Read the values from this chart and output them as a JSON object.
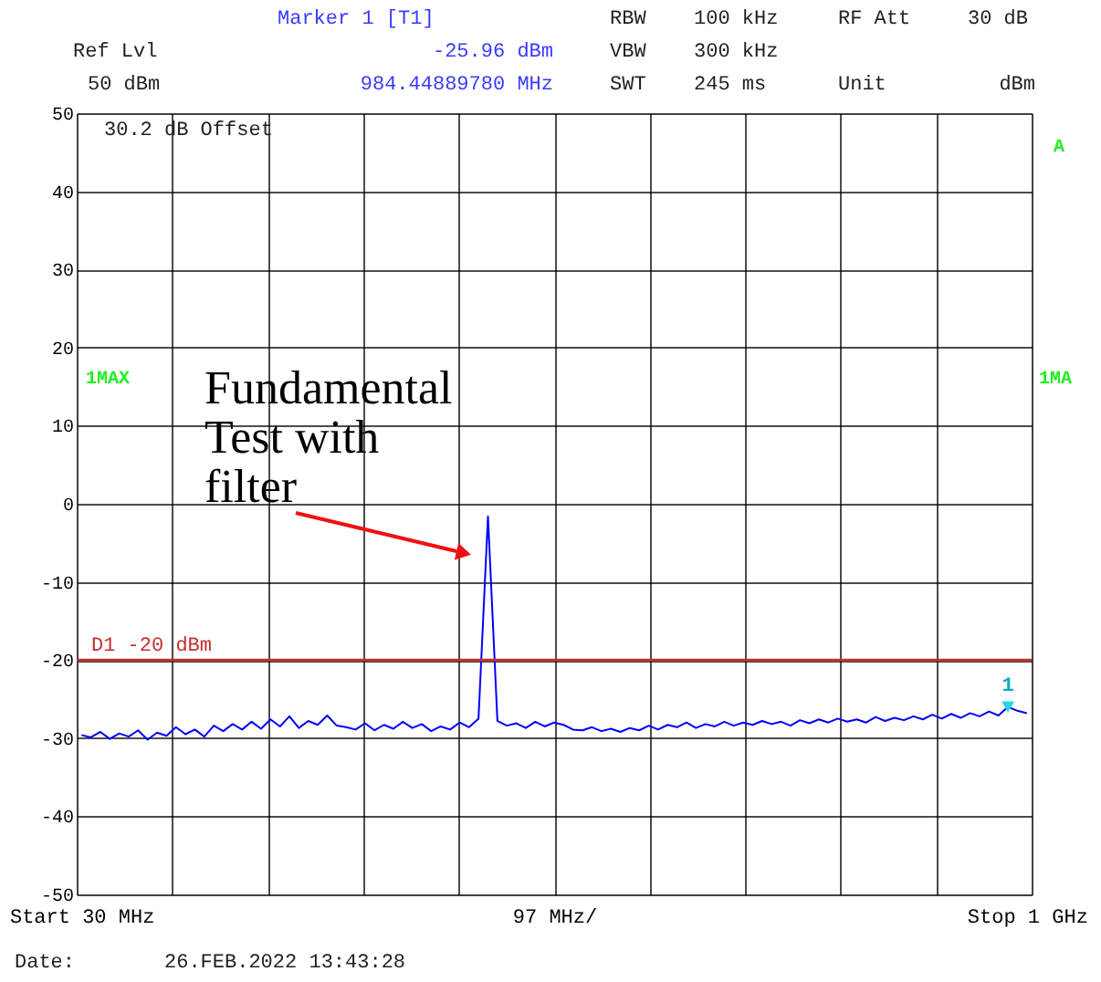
{
  "chart_data": {
    "type": "line",
    "categories": [
      "Start 30 MHz",
      null,
      null,
      null,
      null,
      null,
      null,
      null,
      null,
      null,
      null,
      null,
      null,
      null,
      null,
      null,
      null,
      null,
      null,
      null,
      null,
      null,
      null,
      null,
      null,
      null,
      null,
      null,
      null,
      null,
      null,
      null,
      null,
      null,
      null,
      null,
      null,
      null,
      null,
      null,
      null,
      null,
      null,
      null,
      null,
      null,
      null,
      null,
      null,
      null,
      "97 MHz/",
      null,
      null,
      null,
      null,
      null,
      null,
      null,
      null,
      null,
      null,
      null,
      null,
      null,
      null,
      null,
      null,
      null,
      null,
      null,
      null,
      null,
      null,
      null,
      null,
      null,
      null,
      null,
      null,
      null,
      null,
      null,
      null,
      null,
      null,
      null,
      null,
      null,
      null,
      null,
      null,
      null,
      null,
      null,
      null,
      null,
      null,
      null,
      null,
      null,
      "Stop 1 GHz"
    ],
    "series": [
      {
        "color": "#0000ff",
        "values": [
          -29.6,
          -29.9,
          -29.2,
          -30.1,
          -29.4,
          -29.8,
          -29.0,
          -30.2,
          -29.3,
          -29.7,
          -28.6,
          -29.5,
          -28.9,
          -29.8,
          -28.4,
          -29.1,
          -28.2,
          -28.9,
          -27.9,
          -28.8,
          -27.6,
          -28.5,
          -27.2,
          -28.7,
          -27.8,
          -28.3,
          -27.1,
          -28.4,
          -28.6,
          -28.9,
          -28.1,
          -29.0,
          -28.3,
          -28.8,
          -27.9,
          -28.7,
          -28.2,
          -29.1,
          -28.5,
          -28.9,
          -28.0,
          -28.6,
          -27.5,
          -1.6,
          -27.8,
          -28.4,
          -28.1,
          -28.7,
          -27.9,
          -28.5,
          -28.0,
          -28.3,
          -28.9,
          -29.0,
          -28.6,
          -29.1,
          -28.8,
          -29.2,
          -28.7,
          -29.0,
          -28.4,
          -28.9,
          -28.3,
          -28.6,
          -28.0,
          -28.7,
          -28.2,
          -28.5,
          -27.9,
          -28.4,
          -28.0,
          -28.3,
          -27.8,
          -28.2,
          -27.9,
          -28.4,
          -27.7,
          -28.1,
          -27.6,
          -28.0,
          -27.5,
          -27.9,
          -27.6,
          -28.0,
          -27.3,
          -27.8,
          -27.4,
          -27.7,
          -27.2,
          -27.6,
          -27.0,
          -27.5,
          -26.9,
          -27.4,
          -26.8,
          -27.2,
          -26.6,
          -27.1,
          -26.0,
          -26.5,
          -26.8
        ]
      },
      {
        "type": "scatter",
        "marker": "triangle",
        "color": "#22d8e8",
        "values": [
          null,
          null,
          null,
          null,
          null,
          null,
          null,
          null,
          null,
          null,
          null,
          null,
          null,
          null,
          null,
          null,
          null,
          null,
          null,
          null,
          null,
          null,
          null,
          null,
          null,
          null,
          null,
          null,
          null,
          null,
          null,
          null,
          null,
          null,
          null,
          null,
          null,
          null,
          null,
          null,
          null,
          null,
          null,
          null,
          null,
          null,
          null,
          null,
          null,
          null,
          null,
          null,
          null,
          null,
          null,
          null,
          null,
          null,
          null,
          null,
          null,
          null,
          null,
          null,
          null,
          null,
          null,
          null,
          null,
          null,
          null,
          null,
          null,
          null,
          null,
          null,
          null,
          null,
          null,
          null,
          null,
          null,
          null,
          null,
          null,
          null,
          null,
          null,
          null,
          null,
          null,
          null,
          null,
          null,
          null,
          null,
          null,
          null,
          -26.0,
          null,
          null
        ]
      }
    ],
    "ylim": [
      -50,
      50
    ],
    "yticks": [
      -50,
      -40,
      -30,
      -20,
      -10,
      0,
      10,
      20,
      30,
      40,
      50
    ],
    "grid": true,
    "ref_lines": [
      {
        "axis": "y",
        "value": -20,
        "label": "D1  -20 dBm",
        "color": "#c0302f"
      }
    ],
    "annotations": [
      "Marker 1 [T1]",
      "-25.96 dBm",
      "984.44889780 MHz",
      "RBW",
      "100 kHz",
      "RF Att",
      "30 dB",
      "Ref Lvl",
      "VBW",
      "300 kHz",
      "50 dBm",
      "SWT",
      "245 ms",
      "Unit",
      "dBm",
      "30.2 dB Offset",
      "1MAX",
      "1MA",
      "A",
      "Date:",
      "26.FEB.2022  13:43:28",
      "Fundamental\nTest with\nfilter",
      "1"
    ]
  }
}
